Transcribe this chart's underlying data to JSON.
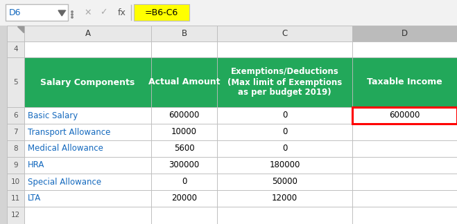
{
  "formula_bar": {
    "cell_ref": "D6",
    "formula": "=B6-C6",
    "formula_bg": "#FFFF00"
  },
  "col_headers": [
    "A",
    "B",
    "C",
    "D"
  ],
  "header_row": {
    "col_A": "Salary Components",
    "col_B": "Actual Amount",
    "col_C": "Exemptions/Deductions\n(Max limit of Exemptions\nas per budget 2019)",
    "col_D": "Taxable Income",
    "bg_color": "#22A85A",
    "text_color": "#FFFFFF"
  },
  "data_rows": [
    {
      "row": "6",
      "col_A": "Basic Salary",
      "col_B": "600000",
      "col_C": "0",
      "col_D": "600000",
      "col_A_color": "#1469BE",
      "highlighted_D": true
    },
    {
      "row": "7",
      "col_A": "Transport Allowance",
      "col_B": "10000",
      "col_C": "0",
      "col_D": "",
      "col_A_color": "#1469BE",
      "highlighted_D": false
    },
    {
      "row": "8",
      "col_A": "Medical Allowance",
      "col_B": "5600",
      "col_C": "0",
      "col_D": "",
      "col_A_color": "#1469BE",
      "highlighted_D": false
    },
    {
      "row": "9",
      "col_A": "HRA",
      "col_B": "300000",
      "col_C": "180000",
      "col_D": "",
      "col_A_color": "#1469BE",
      "highlighted_D": false
    },
    {
      "row": "10",
      "col_A": "Special Allowance",
      "col_B": "0",
      "col_C": "50000",
      "col_D": "",
      "col_A_color": "#1469BE",
      "highlighted_D": false
    },
    {
      "row": "11",
      "col_A": "LTA",
      "col_B": "20000",
      "col_C": "12000",
      "col_D": "",
      "col_A_color": "#1469BE",
      "highlighted_D": false
    }
  ],
  "bg_color": "#D4D4D4",
  "cell_bg": "#FFFFFF",
  "grid_color": "#BBBBBB",
  "row_num_bg": "#E8E8E8",
  "selected_col_D_header_bg": "#BBBBBB",
  "formula_bar_bg": "#F2F2F2"
}
